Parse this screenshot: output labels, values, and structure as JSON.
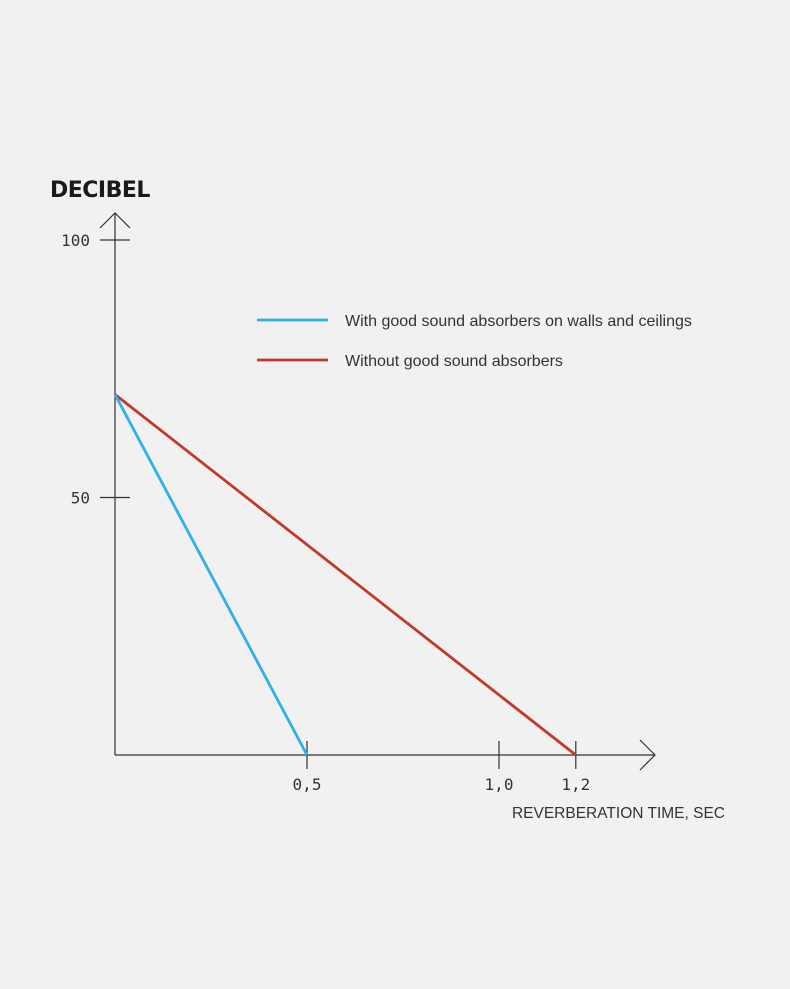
{
  "chart_data": {
    "type": "line",
    "ylabel": "DECIBEL",
    "xlabel": "REVERBERATION TIME, SEC",
    "xlim": [
      0,
      1.4
    ],
    "ylim": [
      0,
      100
    ],
    "y_ticks": [
      {
        "value": 100,
        "label": "100"
      },
      {
        "value": 50,
        "label": "50"
      }
    ],
    "x_ticks": [
      {
        "value": 0.5,
        "label": "0,5"
      },
      {
        "value": 1.0,
        "label": "1,0"
      },
      {
        "value": 1.2,
        "label": "1,2"
      }
    ],
    "legend_position": "top-right",
    "series": [
      {
        "name": "With good sound absorbers on walls and ceilings",
        "color": "#2fb0ea",
        "points": [
          [
            0,
            70
          ],
          [
            0.5,
            0
          ]
        ]
      },
      {
        "name": "Without good sound absorbers",
        "color": "#c0392b",
        "points": [
          [
            0,
            70
          ],
          [
            1.2,
            0
          ]
        ]
      }
    ]
  }
}
